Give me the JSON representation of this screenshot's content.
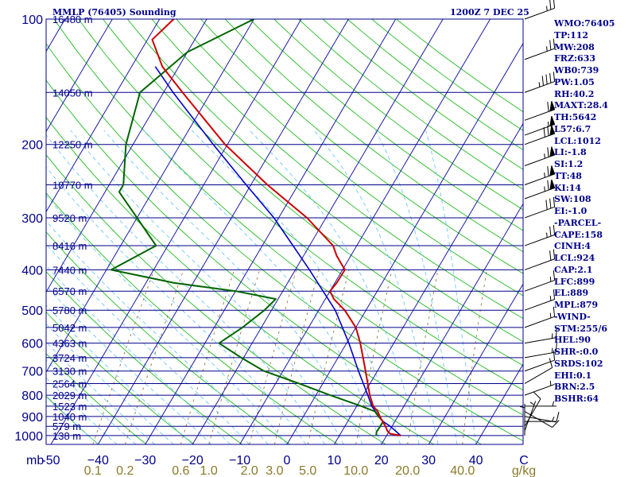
{
  "header": {
    "title": "MMLP (76405) Sounding",
    "time": "1200Z  7 DEC 25"
  },
  "stats": [
    "WMO:76405",
    "TP:112",
    "MW:208",
    "FRZ:633",
    "WB0:739",
    "PW:1.05",
    "RH:40.2",
    "MAXT:28.4",
    "TH:5642",
    "L57:6.7",
    "LCL:1012",
    "LI:-1.8",
    "SI:1.2",
    "TT:48",
    "KI:14",
    "SW:108",
    "EI:-1.0",
    "-PARCEL-",
    "CAPE:158",
    "CINH:4",
    "LCL:924",
    "CAP:2.1",
    "LFC:899",
    "EL:889",
    "MPL:879",
    "-WIND-",
    "STM:255/6",
    "HEL:90",
    "SHR-:0.0",
    "SRDS:102",
    "EHI:0.1",
    "BRN:2.5",
    "BSHR:64"
  ],
  "colors": {
    "isobar": "#00008b",
    "isotherm": "#1a1aa8",
    "dry_adiabat": "#22bb22",
    "moist_adiabat": "#6ec8ff",
    "mixing_ratio": "#8c6a2a",
    "temperature": "#cc0000",
    "dewpoint": "#006400",
    "parcel": "#0000cd",
    "wind": "#000000",
    "axis_text": "#00008b",
    "mixing_text": "#8b7a2a"
  },
  "chart_data": {
    "type": "skew-t",
    "title": "MMLP (76405) Sounding",
    "subtitle": "1200Z  7 DEC 25",
    "pressure_unit": "mb",
    "pressure_levels": [
      100,
      200,
      300,
      400,
      500,
      600,
      700,
      800,
      900,
      1000
    ],
    "pressure_tick_labels": [
      "100",
      "200",
      "300",
      "400",
      "500",
      "600",
      "700",
      "800",
      "900",
      "1000"
    ],
    "pressure_range": [
      1050,
      100
    ],
    "log_pressure": true,
    "height_labels": [
      {
        "p": 100,
        "text": "16480 m"
      },
      {
        "p": 150,
        "text": "14050 m"
      },
      {
        "p": 200,
        "text": "12250 m"
      },
      {
        "p": 250,
        "text": "10770 m"
      },
      {
        "p": 300,
        "text": "9520 m"
      },
      {
        "p": 350,
        "text": "8416 m"
      },
      {
        "p": 400,
        "text": "7440 m"
      },
      {
        "p": 450,
        "text": "6570 m"
      },
      {
        "p": 500,
        "text": "5780 m"
      },
      {
        "p": 550,
        "text": "5042 m"
      },
      {
        "p": 600,
        "text": "4363 m"
      },
      {
        "p": 650,
        "text": "3724 m"
      },
      {
        "p": 700,
        "text": "3130 m"
      },
      {
        "p": 750,
        "text": "2564 m"
      },
      {
        "p": 800,
        "text": "2029 m"
      },
      {
        "p": 850,
        "text": "1523 m"
      },
      {
        "p": 900,
        "text": "1040 m"
      },
      {
        "p": 950,
        "text": "579 m"
      },
      {
        "p": 1000,
        "text": "138 m"
      }
    ],
    "temperature_unit": "C",
    "temperature_ticks": [
      -50,
      -40,
      -30,
      -20,
      -10,
      0,
      10,
      20,
      30,
      40
    ],
    "temperature_tick_labels": [
      "-50",
      "−40",
      "−30",
      "−20",
      "−10",
      "0",
      "10",
      "20",
      "30",
      "40"
    ],
    "temperature_range_at_1050": [
      -51,
      50
    ],
    "mixing_ratio_unit": "g/kg",
    "mixing_ratio_ticks": [
      0.1,
      0.2,
      0.6,
      1.0,
      2.0,
      3.0,
      5.0,
      10.0,
      20.0,
      40.0
    ],
    "mixing_ratio_tick_labels": [
      "0.1",
      "0.2",
      "0.6",
      "1.0",
      "2.0",
      "3.0",
      "5.0",
      "10.0",
      "20.0",
      "40.0"
    ],
    "temperature_profile": [
      {
        "p": 1000,
        "t": 23.0
      },
      {
        "p": 990,
        "t": 20.5
      },
      {
        "p": 975,
        "t": 19.6
      },
      {
        "p": 950,
        "t": 18.6
      },
      {
        "p": 925,
        "t": 17.4
      },
      {
        "p": 900,
        "t": 16.2
      },
      {
        "p": 875,
        "t": 15.1
      },
      {
        "p": 850,
        "t": 13.5
      },
      {
        "p": 800,
        "t": 11.4
      },
      {
        "p": 750,
        "t": 9.5
      },
      {
        "p": 700,
        "t": 7.5
      },
      {
        "p": 650,
        "t": 5.3
      },
      {
        "p": 600,
        "t": 2.9
      },
      {
        "p": 550,
        "t": 0.0
      },
      {
        "p": 500,
        "t": -4.5
      },
      {
        "p": 470,
        "t": -8.2
      },
      {
        "p": 450,
        "t": -10.0
      },
      {
        "p": 430,
        "t": -9.6
      },
      {
        "p": 400,
        "t": -9.5
      },
      {
        "p": 370,
        "t": -13.0
      },
      {
        "p": 350,
        "t": -15.0
      },
      {
        "p": 300,
        "t": -24.0
      },
      {
        "p": 250,
        "t": -36.5
      },
      {
        "p": 200,
        "t": -50.5
      },
      {
        "p": 150,
        "t": -66.0
      },
      {
        "p": 130,
        "t": -73.5
      },
      {
        "p": 112,
        "t": -79.0
      },
      {
        "p": 100,
        "t": -77.0
      }
    ],
    "dewpoint_profile": [
      {
        "p": 1000,
        "t": 17.8
      },
      {
        "p": 980,
        "t": 17.4
      },
      {
        "p": 950,
        "t": 17.5
      },
      {
        "p": 925,
        "t": 17.5
      },
      {
        "p": 900,
        "t": 15.9
      },
      {
        "p": 875,
        "t": 14.5
      },
      {
        "p": 850,
        "t": 11.0
      },
      {
        "p": 800,
        "t": 3.0
      },
      {
        "p": 750,
        "t": -5.0
      },
      {
        "p": 700,
        "t": -14.0
      },
      {
        "p": 650,
        "t": -20.5
      },
      {
        "p": 600,
        "t": -27.0
      },
      {
        "p": 550,
        "t": -24.0
      },
      {
        "p": 500,
        "t": -21.5
      },
      {
        "p": 470,
        "t": -20.5
      },
      {
        "p": 450,
        "t": -30.0
      },
      {
        "p": 430,
        "t": -44.0
      },
      {
        "p": 400,
        "t": -59.0
      },
      {
        "p": 350,
        "t": -52.5
      },
      {
        "p": 300,
        "t": -60.0
      },
      {
        "p": 260,
        "t": -67.0
      },
      {
        "p": 250,
        "t": -67.0
      },
      {
        "p": 200,
        "t": -71.5
      },
      {
        "p": 150,
        "t": -75.0
      },
      {
        "p": 120,
        "t": -70.0
      },
      {
        "p": 100,
        "t": -60.0
      }
    ],
    "parcel_profile": [
      {
        "p": 1000,
        "t": 23.0
      },
      {
        "p": 950,
        "t": 19.6
      },
      {
        "p": 924,
        "t": 17.4
      },
      {
        "p": 900,
        "t": 16.0
      },
      {
        "p": 850,
        "t": 13.2
      },
      {
        "p": 800,
        "t": 11.0
      },
      {
        "p": 700,
        "t": 6.0
      },
      {
        "p": 600,
        "t": 0.5
      },
      {
        "p": 500,
        "t": -6.5
      },
      {
        "p": 400,
        "t": -17.0
      },
      {
        "p": 300,
        "t": -31.0
      },
      {
        "p": 250,
        "t": -41.0
      },
      {
        "p": 200,
        "t": -53.0
      },
      {
        "p": 150,
        "t": -68.0
      },
      {
        "p": 130,
        "t": -75.0
      }
    ],
    "wind_barbs": [
      {
        "p": 1000,
        "dir": 180,
        "spd": 5
      },
      {
        "p": 975,
        "dir": 200,
        "spd": 5
      },
      {
        "p": 950,
        "dir": 210,
        "spd": 10
      },
      {
        "p": 925,
        "dir": 270,
        "spd": 10
      },
      {
        "p": 900,
        "dir": 280,
        "spd": 5
      },
      {
        "p": 875,
        "dir": 300,
        "spd": 10
      },
      {
        "p": 850,
        "dir": 270,
        "spd": 5
      },
      {
        "p": 800,
        "dir": 250,
        "spd": 5
      },
      {
        "p": 750,
        "dir": 240,
        "spd": 10
      },
      {
        "p": 700,
        "dir": 250,
        "spd": 10
      },
      {
        "p": 650,
        "dir": 260,
        "spd": 15
      },
      {
        "p": 600,
        "dir": 260,
        "spd": 15
      },
      {
        "p": 550,
        "dir": 250,
        "spd": 15
      },
      {
        "p": 500,
        "dir": 250,
        "spd": 15
      },
      {
        "p": 450,
        "dir": 250,
        "spd": 15
      },
      {
        "p": 400,
        "dir": 250,
        "spd": 20
      },
      {
        "p": 350,
        "dir": 250,
        "spd": 25
      },
      {
        "p": 300,
        "dir": 250,
        "spd": 30
      },
      {
        "p": 270,
        "dir": 250,
        "spd": 65
      },
      {
        "p": 250,
        "dir": 250,
        "spd": 65
      },
      {
        "p": 225,
        "dir": 250,
        "spd": 65
      },
      {
        "p": 200,
        "dir": 250,
        "spd": 70
      },
      {
        "p": 190,
        "dir": 250,
        "spd": 55
      },
      {
        "p": 175,
        "dir": 250,
        "spd": 60
      },
      {
        "p": 150,
        "dir": 250,
        "spd": 45
      },
      {
        "p": 125,
        "dir": 250,
        "spd": 25
      },
      {
        "p": 100,
        "dir": 250,
        "spd": 25
      }
    ]
  }
}
